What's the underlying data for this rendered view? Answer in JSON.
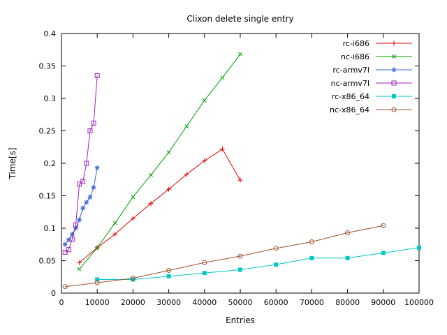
{
  "chart_data": {
    "type": "line",
    "title": "Clixon delete single entry",
    "xlabel": "Entries",
    "ylabel": "Time[s]",
    "xlim": [
      0,
      100000
    ],
    "ylim": [
      0,
      0.4
    ],
    "grid": false,
    "legend_position": "top-right-inside",
    "xticks": [
      {
        "v": 0,
        "label": "0"
      },
      {
        "v": 10000,
        "label": "10000"
      },
      {
        "v": 20000,
        "label": "20000"
      },
      {
        "v": 30000,
        "label": "30000"
      },
      {
        "v": 40000,
        "label": "40000"
      },
      {
        "v": 50000,
        "label": "50000"
      },
      {
        "v": 60000,
        "label": "60000"
      },
      {
        "v": 70000,
        "label": "70000"
      },
      {
        "v": 80000,
        "label": "80000"
      },
      {
        "v": 90000,
        "label": "90000"
      },
      {
        "v": 100000,
        "label": "100000"
      }
    ],
    "yticks": [
      {
        "v": 0,
        "label": "0"
      },
      {
        "v": 0.05,
        "label": "0.05"
      },
      {
        "v": 0.1,
        "label": "0.1"
      },
      {
        "v": 0.15,
        "label": "0.15"
      },
      {
        "v": 0.2,
        "label": "0.2"
      },
      {
        "v": 0.25,
        "label": "0.25"
      },
      {
        "v": 0.3,
        "label": "0.3"
      },
      {
        "v": 0.35,
        "label": "0.35"
      },
      {
        "v": 0.4,
        "label": "0.4"
      }
    ],
    "series": [
      {
        "name": "rc-i686",
        "color": "#e60000",
        "marker": "plus",
        "x": [
          5000,
          10000,
          15000,
          20000,
          25000,
          30000,
          35000,
          40000,
          45000,
          50000
        ],
        "y": [
          0.047,
          0.07,
          0.091,
          0.115,
          0.138,
          0.16,
          0.183,
          0.204,
          0.222,
          0.174
        ]
      },
      {
        "name": "nc-i686",
        "color": "#00a000",
        "marker": "x",
        "x": [
          5000,
          10000,
          15000,
          20000,
          25000,
          30000,
          35000,
          40000,
          45000,
          50000
        ],
        "y": [
          0.037,
          0.07,
          0.108,
          0.148,
          0.182,
          0.217,
          0.257,
          0.297,
          0.332,
          0.368
        ]
      },
      {
        "name": "rc-armv7l",
        "color": "#3465cd",
        "marker": "asterisk",
        "x": [
          1000,
          2000,
          3000,
          4000,
          5000,
          6000,
          7000,
          8000,
          9000,
          10000
        ],
        "y": [
          0.075,
          0.082,
          0.091,
          0.1,
          0.113,
          0.131,
          0.14,
          0.148,
          0.163,
          0.193
        ]
      },
      {
        "name": "nc-armv7l",
        "color": "#a020c0",
        "marker": "square",
        "x": [
          1000,
          2000,
          3000,
          4000,
          5000,
          6000,
          7000,
          8000,
          9000,
          10000
        ],
        "y": [
          0.063,
          0.067,
          0.083,
          0.105,
          0.168,
          0.172,
          0.2,
          0.25,
          0.262,
          0.335
        ]
      },
      {
        "name": "rc-x86_64",
        "color": "#00c8c8",
        "marker": "filled-square",
        "x": [
          10000,
          20000,
          30000,
          40000,
          50000,
          60000,
          70000,
          80000,
          90000,
          100000
        ],
        "y": [
          0.021,
          0.021,
          0.026,
          0.031,
          0.036,
          0.044,
          0.054,
          0.054,
          0.062,
          0.07
        ]
      },
      {
        "name": "nc-x86_64",
        "color": "#a0522d",
        "marker": "circle",
        "x": [
          1000,
          10000,
          20000,
          30000,
          40000,
          50000,
          60000,
          70000,
          80000,
          90000
        ],
        "y": [
          0.01,
          0.016,
          0.023,
          0.035,
          0.047,
          0.057,
          0.069,
          0.079,
          0.093,
          0.104
        ]
      }
    ]
  }
}
